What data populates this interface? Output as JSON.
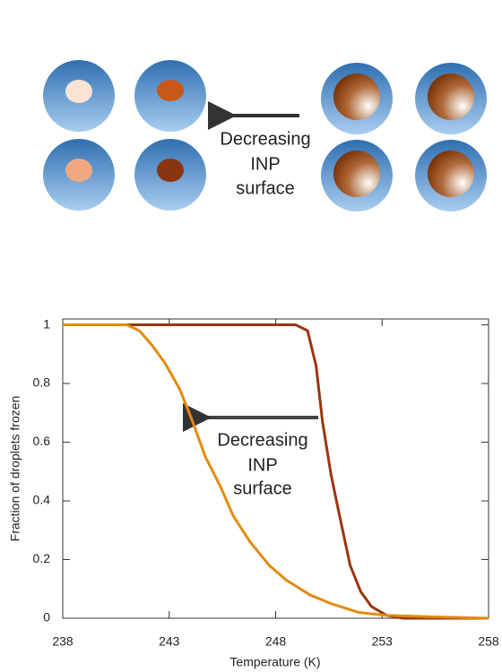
{
  "diagram": {
    "annotation": [
      "Decreasing",
      "INP",
      "surface"
    ]
  },
  "chart_data": {
    "type": "line",
    "xlabel": "Temperature (K)",
    "ylabel": "Fraction of droplets frozen",
    "annotation": [
      "Decreasing",
      "INP",
      "surface"
    ],
    "xlim": [
      238,
      258
    ],
    "ylim": [
      0,
      1.02
    ],
    "xticks": [
      238,
      243,
      248,
      253,
      258
    ],
    "yticks": [
      0,
      0.2,
      0.4,
      0.6,
      0.8,
      1
    ],
    "series": [
      {
        "color": "#9b3510",
        "x": [
          238,
          248.95,
          249.5,
          249.9,
          250.2,
          250.6,
          251,
          251.5,
          252,
          252.5,
          253.2,
          254,
          258
        ],
        "values": [
          1,
          1,
          0.98,
          0.86,
          0.67,
          0.49,
          0.35,
          0.18,
          0.09,
          0.04,
          0.01,
          0,
          0
        ]
      },
      {
        "color": "#e38b10",
        "x": [
          238,
          241,
          241.6,
          242.2,
          242.8,
          243.5,
          244.1,
          244.7,
          245.4,
          246,
          246.8,
          247.7,
          248.5,
          249.6,
          250.6,
          251.9,
          253.2,
          255.3,
          258
        ],
        "values": [
          1,
          1,
          0.98,
          0.93,
          0.87,
          0.78,
          0.67,
          0.55,
          0.45,
          0.35,
          0.26,
          0.18,
          0.13,
          0.08,
          0.05,
          0.02,
          0.01,
          0.005,
          0
        ]
      }
    ]
  }
}
